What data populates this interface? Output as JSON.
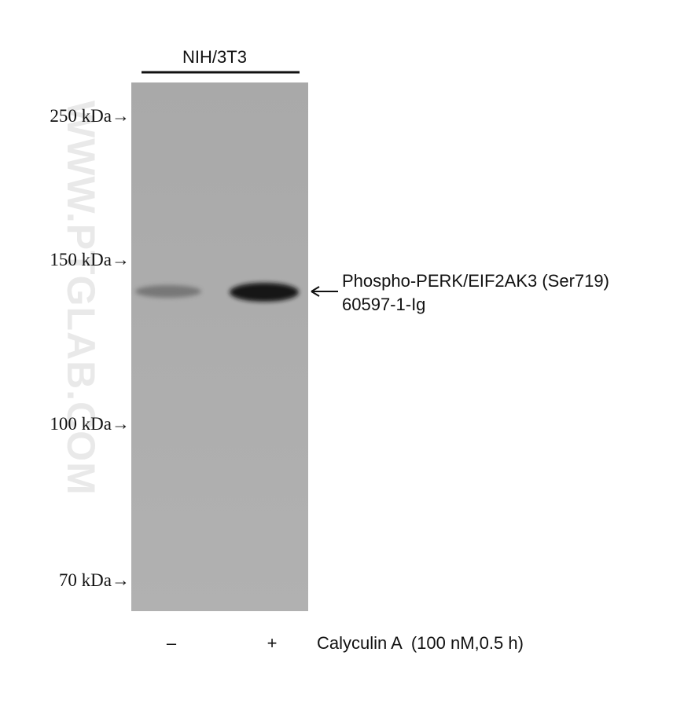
{
  "header": {
    "cell_line": "NIH/3T3"
  },
  "markers": [
    "250 kDa→",
    "150 kDa→",
    "100 kDa→",
    "70 kDa→"
  ],
  "band_label": {
    "name": "Phospho-PERK/EIF2AK3 (Ser719)",
    "catalog": "60597-1-Ig"
  },
  "lanes": [
    "–",
    "+"
  ],
  "treatment": "Calyculin A  (100 nM,0.5 h)",
  "watermark": "WWW.PTGLAB.COM"
}
